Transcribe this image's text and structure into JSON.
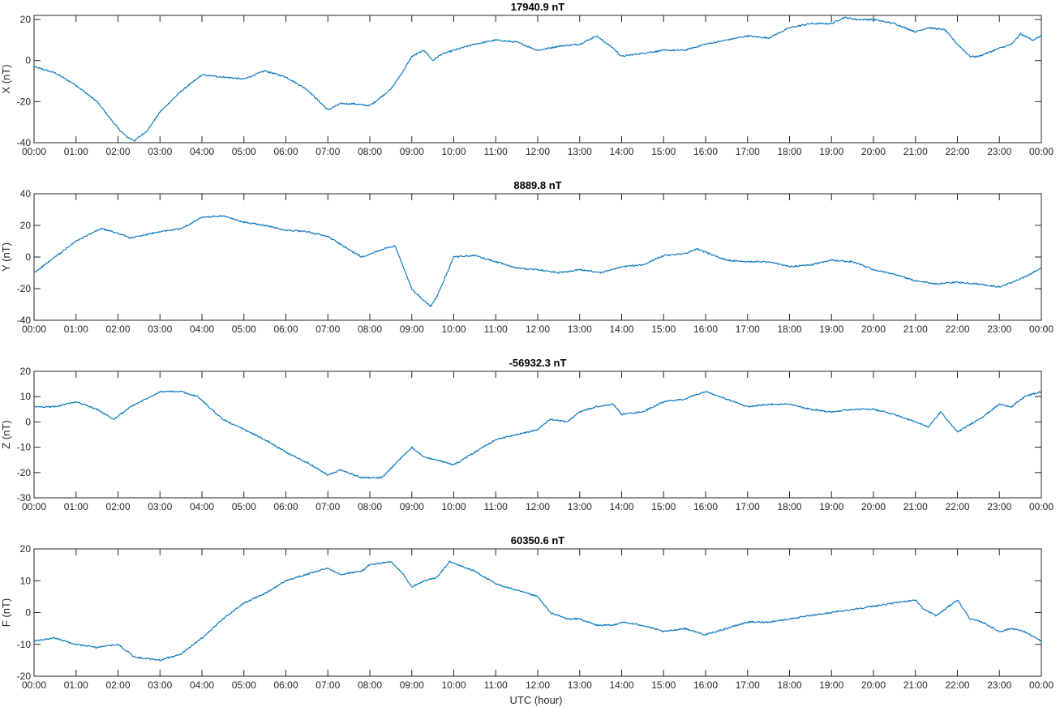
{
  "figure": {
    "xlabel": "UTC (hour)"
  },
  "chart_data": [
    {
      "type": "line",
      "title": "17940.9 nT",
      "ylabel": "X (nT)",
      "xlabel": "",
      "xlim": [
        0,
        24
      ],
      "ylim": [
        -40,
        22
      ],
      "yticks": [
        -40,
        -20,
        0,
        20
      ],
      "xtick_labels": [
        "00:00",
        "01:00",
        "02:00",
        "03:00",
        "04:00",
        "05:00",
        "06:00",
        "07:00",
        "08:00",
        "09:00",
        "10:00",
        "11:00",
        "12:00",
        "13:00",
        "14:00",
        "15:00",
        "16:00",
        "17:00",
        "18:00",
        "19:00",
        "20:00",
        "21:00",
        "22:00",
        "23:00",
        "00:00"
      ],
      "grid": false,
      "color": "#0072BD",
      "series": [
        {
          "x": [
            0,
            0.5,
            1,
            1.5,
            2,
            2.2,
            2.4,
            2.7,
            3,
            3.5,
            4,
            4.5,
            5,
            5.5,
            6,
            6.5,
            7,
            7.3,
            7.6,
            8,
            8.5,
            8.8,
            9,
            9.3,
            9.5,
            9.7,
            10,
            10.5,
            11,
            11.5,
            12,
            12.5,
            13,
            13.4,
            13.8,
            14,
            14.3,
            15,
            15.5,
            16,
            16.5,
            17,
            17.5,
            18,
            18.5,
            19,
            19.3,
            19.6,
            20,
            20.5,
            21,
            21.3,
            21.7,
            22,
            22.3,
            22.5,
            23,
            23.3,
            23.5,
            23.8,
            24
          ],
          "y": [
            -3,
            -6,
            -12,
            -20,
            -33,
            -37,
            -39,
            -34,
            -25,
            -15,
            -7,
            -8,
            -9,
            -5,
            -8,
            -14,
            -24,
            -21,
            -21,
            -22,
            -14,
            -5,
            2,
            5,
            0,
            3,
            5,
            8,
            10,
            9,
            5,
            7,
            8,
            12,
            6,
            2,
            3,
            5,
            5,
            8,
            10,
            12,
            11,
            16,
            18,
            18,
            21,
            20,
            20,
            18,
            14,
            16,
            15,
            8,
            2,
            2,
            6,
            8,
            13,
            10,
            12
          ]
        }
      ]
    },
    {
      "type": "line",
      "title": "8889.8 nT",
      "ylabel": "Y (nT)",
      "xlabel": "",
      "xlim": [
        0,
        24
      ],
      "ylim": [
        -40,
        40
      ],
      "yticks": [
        -40,
        -20,
        0,
        20,
        40
      ],
      "xtick_labels": [
        "00:00",
        "01:00",
        "02:00",
        "03:00",
        "04:00",
        "05:00",
        "06:00",
        "07:00",
        "08:00",
        "09:00",
        "10:00",
        "11:00",
        "12:00",
        "13:00",
        "14:00",
        "15:00",
        "16:00",
        "17:00",
        "18:00",
        "19:00",
        "20:00",
        "21:00",
        "22:00",
        "23:00",
        "00:00"
      ],
      "grid": false,
      "color": "#0072BD",
      "series": [
        {
          "x": [
            0,
            0.5,
            1,
            1.6,
            2,
            2.3,
            3,
            3.5,
            4,
            4.5,
            5,
            5.5,
            6,
            6.5,
            7,
            7.3,
            7.8,
            8,
            8.3,
            8.6,
            9,
            9.3,
            9.45,
            9.6,
            10,
            10.5,
            11,
            11.5,
            12,
            12.5,
            13,
            13.5,
            14,
            14.5,
            15,
            15.5,
            15.8,
            16,
            16.5,
            17,
            17.5,
            18,
            18.5,
            19,
            19.5,
            20,
            20.5,
            21,
            21.5,
            22,
            22.5,
            23,
            23.5,
            24
          ],
          "y": [
            -10,
            0,
            10,
            18,
            15,
            12,
            16,
            18,
            25,
            26,
            22,
            20,
            17,
            16,
            13,
            8,
            0,
            2,
            5,
            7,
            -20,
            -28,
            -31,
            -25,
            0,
            1,
            -3,
            -7,
            -8,
            -10,
            -8,
            -10,
            -6,
            -5,
            1,
            2,
            5,
            3,
            -2,
            -3,
            -3,
            -6,
            -5,
            -2,
            -3,
            -8,
            -11,
            -15,
            -17,
            -16,
            -17,
            -19,
            -14,
            -7
          ]
        }
      ]
    },
    {
      "type": "line",
      "title": "-56932.3 nT",
      "ylabel": "Z (nT)",
      "xlabel": "",
      "xlim": [
        0,
        24
      ],
      "ylim": [
        -30,
        20
      ],
      "yticks": [
        -30,
        -20,
        -10,
        0,
        10,
        20
      ],
      "xtick_labels": [
        "00:00",
        "01:00",
        "02:00",
        "03:00",
        "04:00",
        "05:00",
        "06:00",
        "07:00",
        "08:00",
        "09:00",
        "10:00",
        "11:00",
        "12:00",
        "13:00",
        "14:00",
        "15:00",
        "16:00",
        "17:00",
        "18:00",
        "19:00",
        "20:00",
        "21:00",
        "22:00",
        "23:00",
        "00:00"
      ],
      "grid": false,
      "color": "#0072BD",
      "series": [
        {
          "x": [
            0,
            0.5,
            1,
            1.5,
            1.9,
            2.3,
            3,
            3.5,
            3.9,
            4.5,
            5,
            5.5,
            6,
            6.5,
            7,
            7.3,
            7.8,
            8.3,
            8.7,
            9,
            9.3,
            9.6,
            10,
            10.5,
            11,
            11.5,
            12,
            12.3,
            12.7,
            13,
            13.4,
            13.8,
            14,
            14.5,
            15,
            15.5,
            16,
            16.5,
            17,
            17.5,
            18,
            18.5,
            19,
            19.5,
            20,
            20.5,
            21,
            21.3,
            21.6,
            22,
            22.3,
            22.6,
            23,
            23.3,
            23.6,
            24
          ],
          "y": [
            6,
            6,
            8,
            5,
            1,
            6,
            12,
            12,
            10,
            1,
            -3,
            -7,
            -12,
            -16,
            -21,
            -19,
            -22,
            -22,
            -15,
            -10,
            -14,
            -15,
            -17,
            -12,
            -7,
            -5,
            -3,
            1,
            0,
            4,
            6,
            7,
            3,
            4,
            8,
            9,
            12,
            9,
            6,
            7,
            7,
            5,
            4,
            5,
            5,
            3,
            0,
            -2,
            4,
            -4,
            -1,
            2,
            7,
            6,
            10,
            12
          ]
        }
      ]
    },
    {
      "type": "line",
      "title": "60350.6 nT",
      "ylabel": "F (nT)",
      "xlabel": "UTC (hour)",
      "xlim": [
        0,
        24
      ],
      "ylim": [
        -20,
        20
      ],
      "yticks": [
        -20,
        -10,
        0,
        10,
        20
      ],
      "xtick_labels": [
        "00:00",
        "01:00",
        "02:00",
        "03:00",
        "04:00",
        "05:00",
        "06:00",
        "07:00",
        "08:00",
        "09:00",
        "10:00",
        "11:00",
        "12:00",
        "13:00",
        "14:00",
        "15:00",
        "16:00",
        "17:00",
        "18:00",
        "19:00",
        "20:00",
        "21:00",
        "22:00",
        "23:00",
        "00:00"
      ],
      "grid": false,
      "color": "#0072BD",
      "series": [
        {
          "x": [
            0,
            0.5,
            1,
            1.5,
            2,
            2.4,
            3,
            3.5,
            4,
            4.5,
            5,
            5.5,
            6,
            6.5,
            7,
            7.3,
            7.8,
            8,
            8.5,
            8.8,
            9,
            9.3,
            9.6,
            9.9,
            10.5,
            11,
            11.5,
            12,
            12.3,
            12.7,
            13,
            13.4,
            13.8,
            14,
            14.5,
            15,
            15.5,
            16,
            16.5,
            17,
            17.5,
            18,
            18.5,
            19,
            19.5,
            20,
            20.5,
            21,
            21.2,
            21.5,
            22,
            22.3,
            22.6,
            23,
            23.3,
            23.6,
            24
          ],
          "y": [
            -9,
            -8,
            -10,
            -11,
            -10,
            -14,
            -15,
            -13,
            -8,
            -2,
            3,
            6,
            10,
            12,
            14,
            12,
            13,
            15,
            16,
            12,
            8,
            10,
            11,
            16,
            13,
            9,
            7,
            5,
            0,
            -2,
            -2,
            -4,
            -4,
            -3,
            -4,
            -6,
            -5,
            -7,
            -5,
            -3,
            -3,
            -2,
            -1,
            0,
            1,
            2,
            3,
            4,
            1,
            -1,
            4,
            -2,
            -3,
            -6,
            -5,
            -6,
            -9
          ]
        }
      ]
    }
  ]
}
